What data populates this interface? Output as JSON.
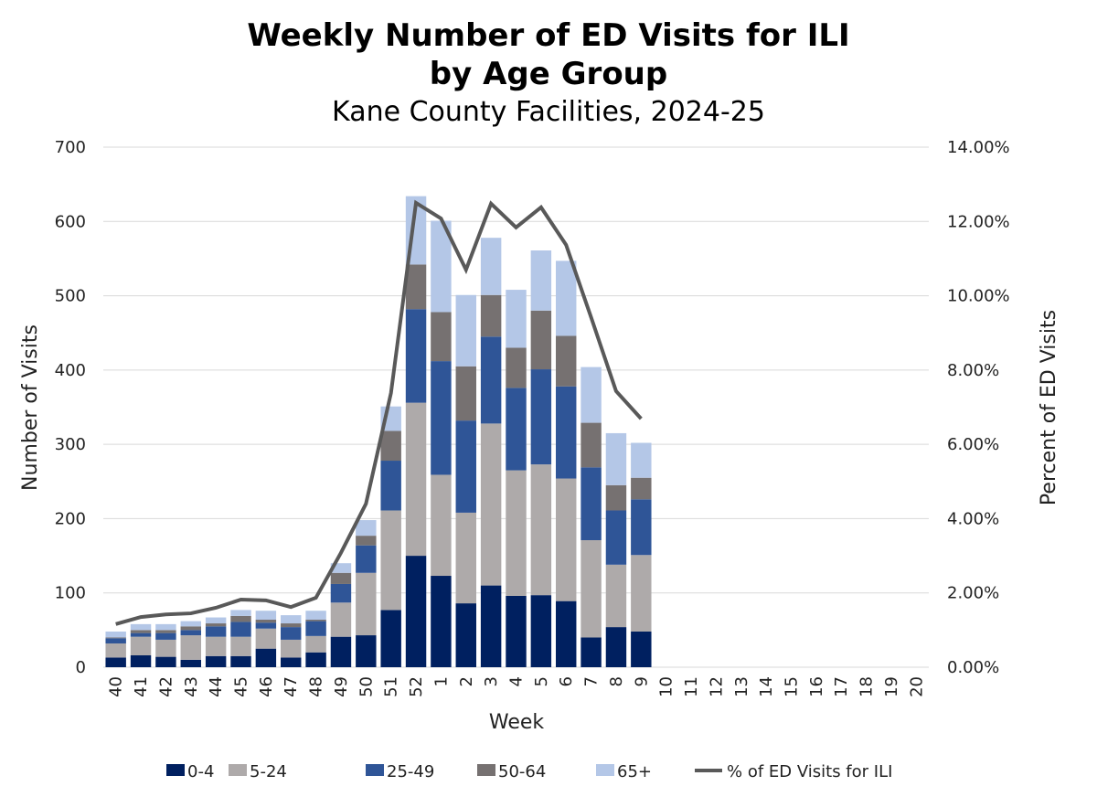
{
  "chart_data": {
    "type": "bar",
    "stacked": true,
    "title": "Weekly Number of ED Visits for ILI",
    "title_line2": "by Age Group",
    "subtitle": "Kane County Facilities, 2024-25",
    "xlabel": "Week",
    "ylabel": "Number of Visits",
    "y2label": "Percent of ED Visits",
    "ylim": [
      0,
      700
    ],
    "y2lim": [
      0,
      14
    ],
    "yticks": [
      "0",
      "100",
      "200",
      "300",
      "400",
      "500",
      "600",
      "700"
    ],
    "y2ticks": [
      "0.00%",
      "2.00%",
      "4.00%",
      "6.00%",
      "8.00%",
      "10.00%",
      "12.00%",
      "14.00%"
    ],
    "grid": true,
    "legend_position": "bottom",
    "categories": [
      "40",
      "41",
      "42",
      "43",
      "44",
      "45",
      "46",
      "47",
      "48",
      "49",
      "50",
      "51",
      "52",
      "1",
      "2",
      "3",
      "4",
      "5",
      "6",
      "7",
      "8",
      "9",
      "10",
      "11",
      "12",
      "13",
      "14",
      "15",
      "16",
      "17",
      "18",
      "19",
      "20"
    ],
    "series": [
      {
        "name": "0-4",
        "color": "#002060",
        "values": [
          13,
          16,
          14,
          10,
          15,
          15,
          25,
          13,
          20,
          41,
          43,
          77,
          150,
          123,
          86,
          110,
          96,
          97,
          89,
          40,
          54,
          48,
          null,
          null,
          null,
          null,
          null,
          null,
          null,
          null,
          null,
          null,
          null
        ]
      },
      {
        "name": "5-24",
        "color": "#AEAAAA",
        "values": [
          19,
          25,
          23,
          33,
          26,
          26,
          27,
          24,
          22,
          46,
          84,
          134,
          206,
          136,
          122,
          218,
          169,
          176,
          165,
          131,
          84,
          103,
          null,
          null,
          null,
          null,
          null,
          null,
          null,
          null,
          null,
          null,
          null
        ]
      },
      {
        "name": "25-49",
        "color": "#2F5597",
        "values": [
          7,
          5,
          9,
          7,
          14,
          20,
          8,
          17,
          20,
          25,
          37,
          67,
          126,
          153,
          124,
          117,
          111,
          128,
          124,
          98,
          73,
          75,
          null,
          null,
          null,
          null,
          null,
          null,
          null,
          null,
          null,
          null,
          null
        ]
      },
      {
        "name": "50-64",
        "color": "#767171",
        "values": [
          1,
          4,
          4,
          5,
          4,
          8,
          4,
          5,
          2,
          15,
          13,
          40,
          60,
          66,
          73,
          56,
          54,
          79,
          68,
          60,
          34,
          29,
          null,
          null,
          null,
          null,
          null,
          null,
          null,
          null,
          null,
          null,
          null
        ]
      },
      {
        "name": "65+",
        "color": "#B4C7E7",
        "values": [
          8,
          8,
          8,
          7,
          8,
          8,
          12,
          11,
          12,
          13,
          21,
          33,
          92,
          123,
          96,
          77,
          78,
          81,
          101,
          75,
          70,
          47,
          null,
          null,
          null,
          null,
          null,
          null,
          null,
          null,
          null,
          null,
          null
        ]
      }
    ],
    "line_series": {
      "name": "% of ED Visits for ILI",
      "color": "#595959",
      "axis": "right",
      "values": [
        1.16,
        1.35,
        1.42,
        1.45,
        1.6,
        1.82,
        1.8,
        1.62,
        1.87,
        3.08,
        4.4,
        7.38,
        12.5,
        12.08,
        10.7,
        12.48,
        11.84,
        12.38,
        11.37,
        9.42,
        7.43,
        6.69,
        null,
        null,
        null,
        null,
        null,
        null,
        null,
        null,
        null,
        null,
        null
      ]
    }
  }
}
